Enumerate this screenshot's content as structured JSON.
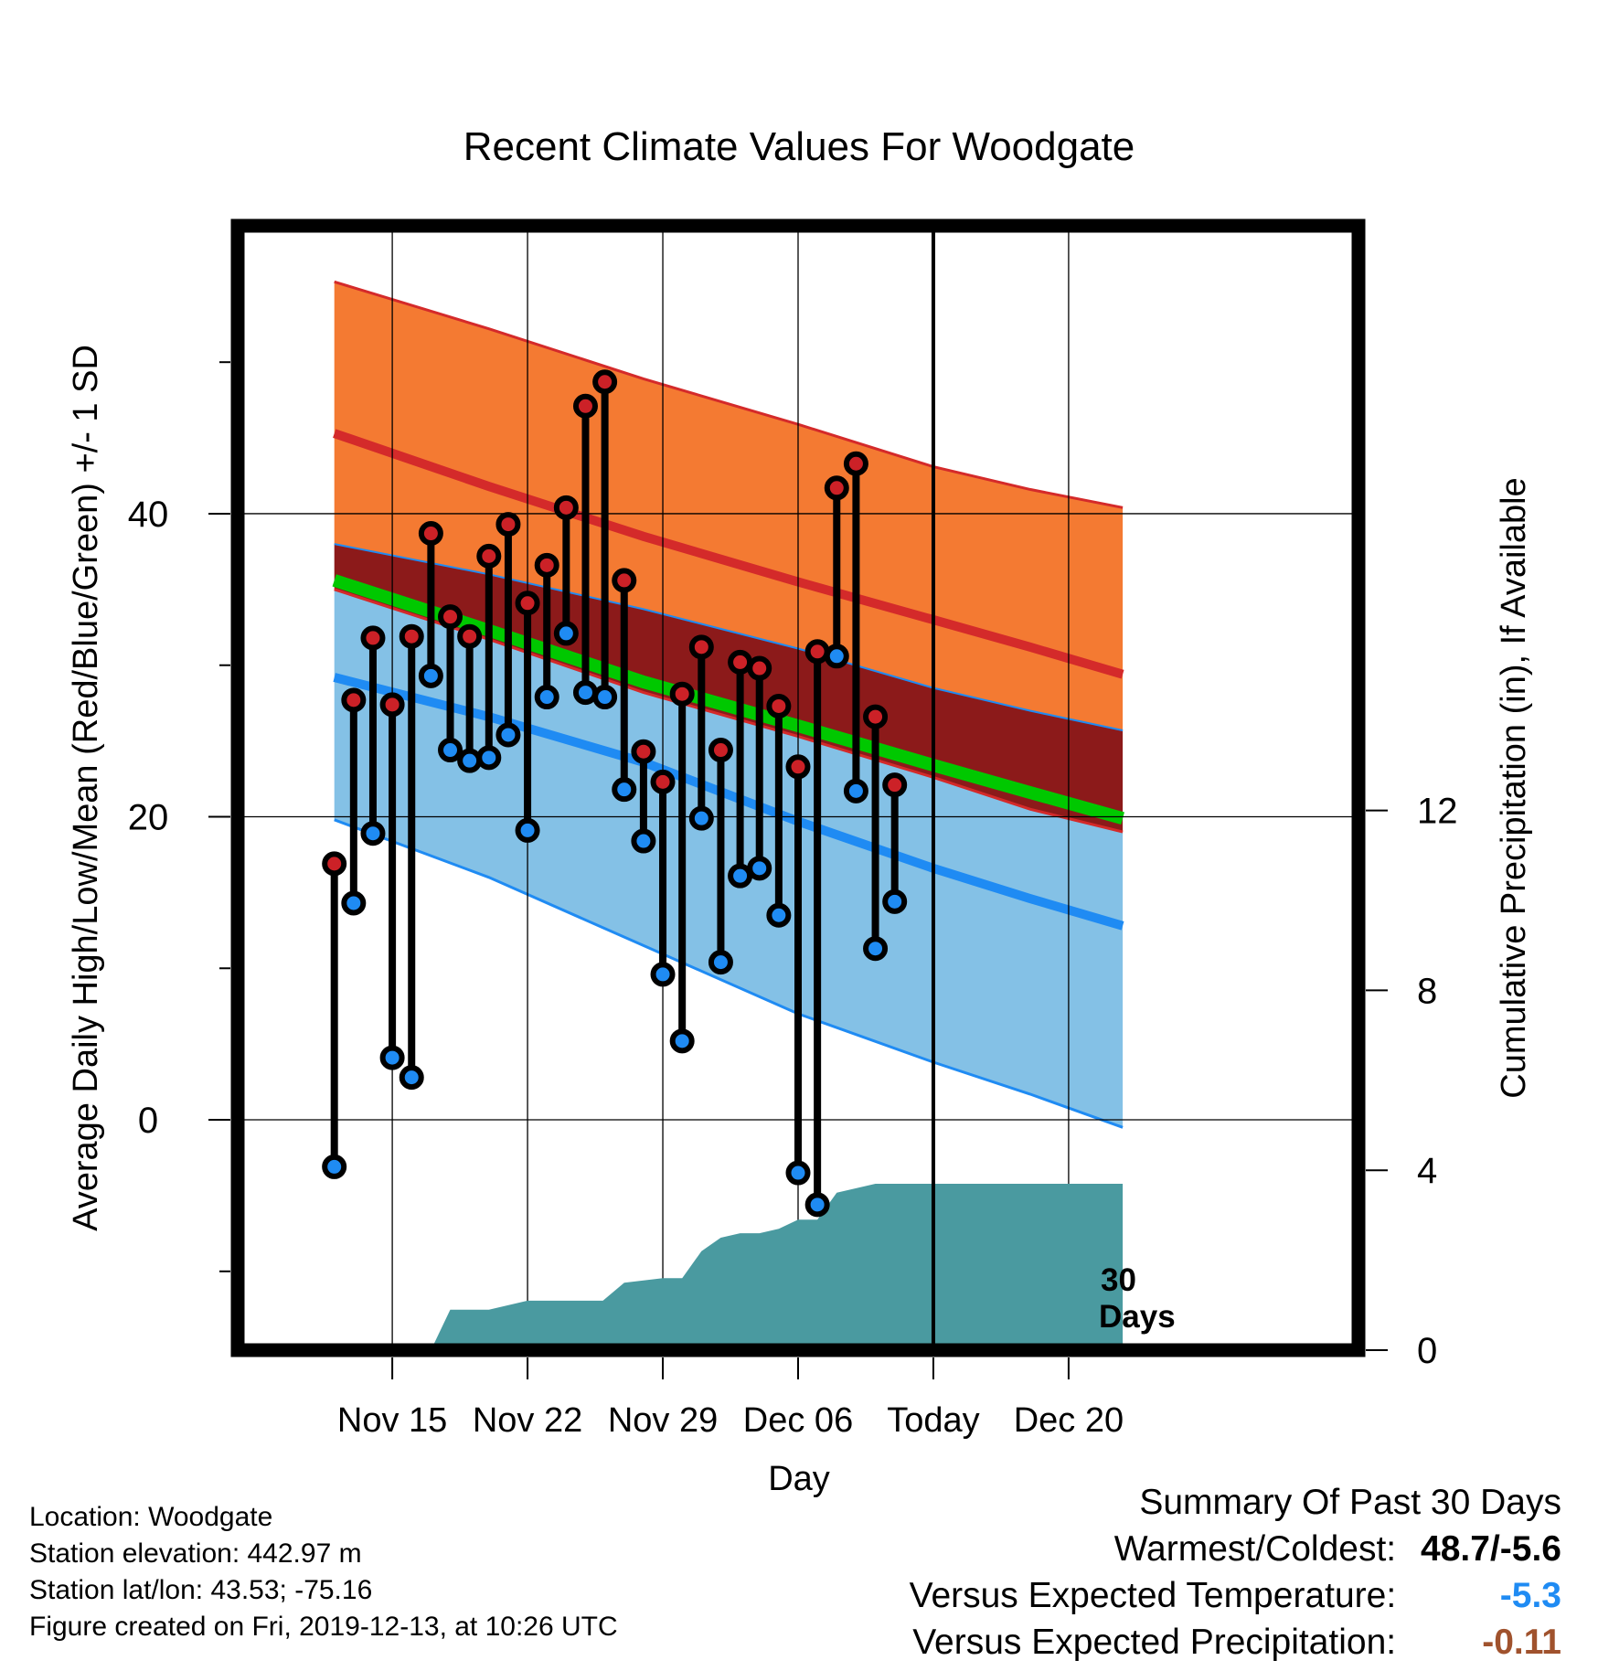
{
  "chart_data": {
    "type": "line",
    "title": "Recent Climate Values For Woodgate",
    "xlabel": "Day",
    "ylabel_left": "Average Daily High/Low/Mean (Red/Blue/Green) +/- 1 SD",
    "ylabel_right": "Cumulative Precipitation (in), If Available",
    "x_range": [
      -5,
      53
    ],
    "y_left_range": [
      -15.2,
      59
    ],
    "y_right_range": [
      0,
      25
    ],
    "x_ticks": [
      {
        "day": 3,
        "label": "Nov 15"
      },
      {
        "day": 10,
        "label": "Nov 22"
      },
      {
        "day": 17,
        "label": "Nov 29"
      },
      {
        "day": 24,
        "label": "Dec 06"
      },
      {
        "day": 31,
        "label": "Today"
      },
      {
        "day": 38,
        "label": "Dec 20"
      }
    ],
    "y_left_major_ticks": [
      0,
      20,
      40
    ],
    "y_left_minor_ticks": [
      -10,
      10,
      30,
      50
    ],
    "y_right_ticks": [
      0,
      4,
      8,
      12
    ],
    "today_day": 31,
    "today_annotation_line1": "30",
    "today_annotation_line2": "Days",
    "normal_high_mean": [
      [
        0,
        45.3
      ],
      [
        8,
        41.8
      ],
      [
        16,
        38.5
      ],
      [
        24,
        35.5
      ],
      [
        31,
        33.0
      ],
      [
        36,
        31.2
      ],
      [
        40.8,
        29.4
      ]
    ],
    "normal_high_upper": [
      [
        0,
        55.3
      ],
      [
        8,
        52.2
      ],
      [
        16,
        48.9
      ],
      [
        24,
        45.9
      ],
      [
        31,
        43.1
      ],
      [
        36,
        41.6
      ],
      [
        40.8,
        40.4
      ]
    ],
    "normal_high_lower": [
      [
        0,
        38.0
      ],
      [
        8,
        36.0
      ],
      [
        16,
        33.7
      ],
      [
        24,
        31.1
      ],
      [
        31,
        28.5
      ],
      [
        36,
        27.0
      ],
      [
        40.8,
        25.7
      ]
    ],
    "normal_mean": [
      [
        0,
        35.6
      ],
      [
        8,
        32.3
      ],
      [
        16,
        28.9
      ],
      [
        24,
        26.0
      ],
      [
        31,
        23.4
      ],
      [
        36,
        21.6
      ],
      [
        40.8,
        19.9
      ]
    ],
    "normal_low_mean": [
      [
        0,
        29.2
      ],
      [
        8,
        26.6
      ],
      [
        16,
        23.6
      ],
      [
        24,
        19.7
      ],
      [
        31,
        16.6
      ],
      [
        36,
        14.6
      ],
      [
        40.8,
        12.8
      ]
    ],
    "normal_low_upper": [
      [
        0,
        35.0
      ],
      [
        8,
        31.7
      ],
      [
        16,
        28.2
      ],
      [
        24,
        25.3
      ],
      [
        31,
        22.6
      ],
      [
        36,
        20.5
      ],
      [
        40.8,
        19.0
      ]
    ],
    "normal_low_lower": [
      [
        0,
        19.8
      ],
      [
        8,
        16.0
      ],
      [
        16,
        11.5
      ],
      [
        24,
        7.0
      ],
      [
        31,
        3.8
      ],
      [
        36,
        1.7
      ],
      [
        40.8,
        -0.5
      ]
    ],
    "daily_high": [
      16.9,
      27.7,
      31.8,
      27.4,
      31.9,
      38.7,
      33.2,
      31.9,
      37.2,
      39.3,
      34.1,
      36.6,
      40.4,
      47.1,
      48.7,
      35.6,
      24.3,
      22.3,
      28.1,
      31.2,
      24.4,
      30.2,
      29.8,
      27.3,
      23.3,
      30.9,
      41.7,
      43.3,
      26.6,
      22.1
    ],
    "daily_low": [
      -3.1,
      14.3,
      18.9,
      4.1,
      2.8,
      29.3,
      24.4,
      23.7,
      23.9,
      25.4,
      19.1,
      27.9,
      32.1,
      28.2,
      27.9,
      21.8,
      18.4,
      9.6,
      5.2,
      19.9,
      10.4,
      16.1,
      16.6,
      13.5,
      -3.5,
      -5.6,
      30.6,
      21.7,
      11.3,
      14.4
    ],
    "cumulative_precip": [
      [
        0,
        0
      ],
      [
        5,
        0
      ],
      [
        6,
        0.9
      ],
      [
        8,
        0.9
      ],
      [
        10,
        1.1
      ],
      [
        13.9,
        1.1
      ],
      [
        15,
        1.5
      ],
      [
        17,
        1.6
      ],
      [
        18,
        1.6
      ],
      [
        19,
        2.2
      ],
      [
        20,
        2.5
      ],
      [
        21,
        2.6
      ],
      [
        22,
        2.6
      ],
      [
        23,
        2.7
      ],
      [
        24,
        2.9
      ],
      [
        25,
        2.9
      ],
      [
        26,
        3.5
      ],
      [
        28,
        3.7
      ],
      [
        30,
        3.7
      ],
      [
        40.8,
        3.7
      ]
    ],
    "series": [
      {
        "name": "Red",
        "color": "#cc2127"
      },
      {
        "name": "Blue",
        "color": "#1f8bf3"
      },
      {
        "name": "Green",
        "color": "#00c800"
      }
    ],
    "colors": {
      "high_band": "#f47a32",
      "high_line": "#d42a2a",
      "mean_band": "#8c1a1a",
      "mean_line": "#00c800",
      "low_band": "#84c1e6",
      "low_line": "#1f8bf3",
      "precip": "#4a9aa0"
    },
    "grid": true
  },
  "footer": {
    "location": "Location: Woodgate",
    "elevation": "Station elevation: 442.97 m",
    "latlon": "Station lat/lon: 43.53; -75.16",
    "created": "Figure created on Fri, 2019-12-13, at 10:26 UTC"
  },
  "summary": {
    "title": "Summary Of Past 30 Days",
    "warmest_label": "Warmest/Coldest:",
    "warmest_value": "48.7/-5.6",
    "temp_label": "Versus Expected Temperature:",
    "temp_value": "-5.3",
    "temp_color": "#1f8bf3",
    "precip_label": "Versus Expected Precipitation:",
    "precip_value": "-0.11",
    "precip_color": "#a0522d"
  }
}
